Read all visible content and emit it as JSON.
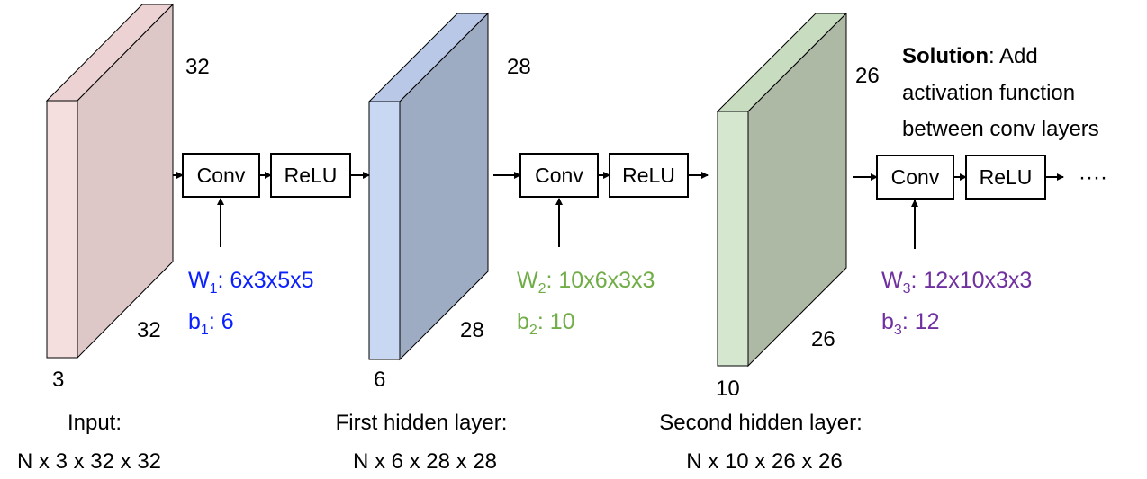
{
  "colors": {
    "layer1_front": "#f4dede",
    "layer1_side": "#ddc7c7",
    "layer2_front": "#c9d8f2",
    "layer2_side": "#9eacc3",
    "layer3_front": "#d6e7cf",
    "layer3_side": "#adb8a5",
    "w1": "#0a20ff",
    "w2": "#70ad47",
    "w3": "#7030a0"
  },
  "input": {
    "height_label": "32",
    "width_label": "32",
    "depth_label": "3",
    "caption_line1": "Input:",
    "caption_line2": "N x 3 x 32 x 32"
  },
  "hidden1": {
    "height_label": "28",
    "width_label": "28",
    "depth_label": "6",
    "caption_line1": "First hidden layer:",
    "caption_line2": "N x 6 x 28 x 28"
  },
  "hidden2": {
    "height_label": "26",
    "width_label": "26",
    "depth_label": "10",
    "caption_line1": "Second hidden layer:",
    "caption_line2": "N x 10 x 26 x 26"
  },
  "stage1": {
    "conv": "Conv",
    "relu": "ReLU",
    "w_main": "W",
    "w_sub": "1",
    "w_val": ": 6x3x5x5",
    "b_main": "b",
    "b_sub": "1",
    "b_val": ": 6"
  },
  "stage2": {
    "conv": "Conv",
    "relu": "ReLU",
    "w_main": "W",
    "w_sub": "2",
    "w_val": ": 10x6x3x3",
    "b_main": "b",
    "b_sub": "2",
    "b_val": ": 10"
  },
  "stage3": {
    "conv": "Conv",
    "relu": "ReLU",
    "w_main": "W",
    "w_sub": "3",
    "w_val": ": 12x10x3x3",
    "b_main": "b",
    "b_sub": "3",
    "b_val": ": 12"
  },
  "ellipsis": "····",
  "solution": {
    "bold": "Solution",
    "line1_rest": ": Add",
    "line2": "activation function",
    "line3": "between conv layers"
  }
}
